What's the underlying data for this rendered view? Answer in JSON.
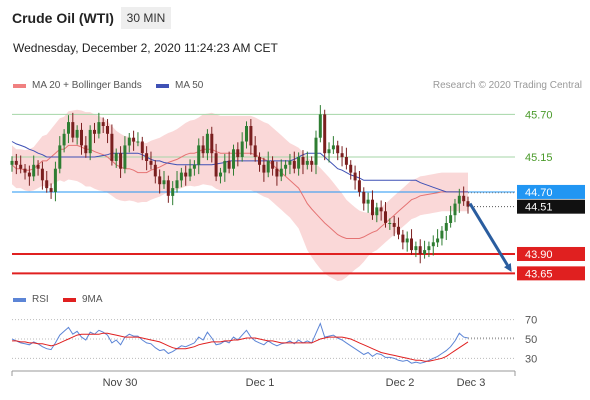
{
  "header": {
    "instrument": "Crude Oil (WTI)",
    "timeframe": "30 MIN",
    "datetime": "Wednesday, December 2, 2020 11:24:23 AM CET",
    "credit": "Research © 2020 Trading Central"
  },
  "colors": {
    "candle_up": "#2e7d32",
    "candle_down": "#7a1f1f",
    "bollinger_band": "#f9d4d4",
    "ma20": "#e57373",
    "ma50": "#3f51b5",
    "pivot": "#2196f3",
    "resistance": "#a5d6a7",
    "support": "#e02020",
    "rsi": "#5c85d6",
    "rsi_ma": "#e02020",
    "forecast_arrow": "#2a5d9f"
  },
  "chart_data": [
    {
      "type": "candlestick",
      "x_ticks": [
        "Nov 30",
        "Dec 1",
        "Dec 2",
        "Dec 3"
      ],
      "legend": [
        {
          "name": "MA 20 + Bollinger Bands",
          "color": "#f08080"
        },
        {
          "name": "MA 50",
          "color": "#3f51b5"
        }
      ],
      "ylim": [
        43.5,
        45.95
      ],
      "levels": [
        {
          "value": 45.7,
          "label": "45.70",
          "kind": "resistance"
        },
        {
          "value": 45.15,
          "label": "45.15",
          "kind": "resistance"
        },
        {
          "value": 44.7,
          "label": "44.70",
          "kind": "pivot"
        },
        {
          "value": 43.9,
          "label": "43.90",
          "kind": "support"
        },
        {
          "value": 43.65,
          "label": "43.65",
          "kind": "support"
        }
      ],
      "last_price": {
        "value": 44.51,
        "label": "44.51"
      },
      "forecast": {
        "from": 44.55,
        "to": 43.65
      },
      "close": [
        45.1,
        45.05,
        45.0,
        44.95,
        44.9,
        45.05,
        45.0,
        44.85,
        44.75,
        44.7,
        45.0,
        45.3,
        45.45,
        45.6,
        45.4,
        45.5,
        45.3,
        45.2,
        45.5,
        45.45,
        45.6,
        45.55,
        45.45,
        45.1,
        45.2,
        45.0,
        45.3,
        45.4,
        45.35,
        45.35,
        45.2,
        45.1,
        45.05,
        44.9,
        44.8,
        44.85,
        44.65,
        44.75,
        44.85,
        44.95,
        44.9,
        45.0,
        45.05,
        45.3,
        45.2,
        45.45,
        45.2,
        44.9,
        44.95,
        45.1,
        45.0,
        45.25,
        45.15,
        45.35,
        45.55,
        45.3,
        45.15,
        45.05,
        44.95,
        45.1,
        45.0,
        44.9,
        45.0,
        45.05,
        45.1,
        45.0,
        45.15,
        45.05,
        45.1,
        45.05,
        45.4,
        45.7,
        45.2,
        45.25,
        45.3,
        45.2,
        45.15,
        45.05,
        44.95,
        44.85,
        44.7,
        44.55,
        44.6,
        44.4,
        44.5,
        44.45,
        44.3,
        44.3,
        44.25,
        44.15,
        44.05,
        44.1,
        43.95,
        44.0,
        43.9,
        43.95,
        44.0,
        44.05,
        44.1,
        44.2,
        44.3,
        44.4,
        44.55,
        44.65,
        44.58,
        44.51
      ],
      "ma20": [
        45.05,
        45.0,
        45.0,
        44.98,
        44.98,
        45.0,
        45.05,
        45.1,
        45.1,
        45.15,
        45.2,
        45.25,
        45.25,
        45.3,
        45.3,
        45.3,
        45.28,
        45.25,
        45.25,
        45.22,
        45.2,
        45.18,
        45.15,
        45.1,
        45.05,
        45.02,
        45.0,
        45.0,
        44.98,
        44.95,
        44.95,
        44.95,
        44.98,
        45.0,
        45.02,
        45.05,
        45.08,
        45.1,
        45.12,
        45.15,
        45.18,
        45.2,
        45.2,
        45.22,
        45.25,
        45.25,
        45.25,
        45.22,
        45.2,
        45.2,
        45.2,
        45.2,
        45.2,
        45.2,
        45.2,
        45.2,
        45.18,
        45.15,
        45.12,
        45.1,
        45.05,
        45.0,
        44.95,
        44.9,
        44.85,
        44.8,
        44.75,
        44.65,
        44.55,
        44.48,
        44.42,
        44.36,
        44.3,
        44.25,
        44.2,
        44.15,
        44.12,
        44.1,
        44.1,
        44.1,
        44.1,
        44.12,
        44.15,
        44.18,
        44.2,
        44.25,
        44.3,
        44.35,
        44.4,
        44.45,
        44.5,
        44.55,
        44.6,
        44.62,
        44.65,
        44.66,
        44.67,
        44.68,
        44.69,
        44.7,
        44.7,
        44.7,
        44.7,
        44.7,
        44.7,
        44.7
      ],
      "ma50": [
        45.35,
        45.32,
        45.3,
        45.28,
        45.25,
        45.23,
        45.2,
        45.18,
        45.15,
        45.15,
        45.15,
        45.15,
        45.15,
        45.15,
        45.15,
        45.15,
        45.15,
        45.15,
        45.15,
        45.15,
        45.16,
        45.17,
        45.18,
        45.2,
        45.2,
        45.2,
        45.2,
        45.2,
        45.2,
        45.2,
        45.18,
        45.15,
        45.12,
        45.1,
        45.1,
        45.08,
        45.07,
        45.06,
        45.05,
        45.05,
        45.05,
        45.05,
        45.05,
        45.05,
        45.05,
        45.05,
        45.05,
        45.06,
        45.07,
        45.08,
        45.1,
        45.1,
        45.1,
        45.1,
        45.1,
        45.1,
        45.1,
        45.1,
        45.1,
        45.1,
        45.1,
        45.1,
        45.1,
        45.1,
        45.1,
        45.12,
        45.15,
        45.18,
        45.2,
        45.2,
        45.2,
        45.2,
        45.15,
        45.1,
        45.05,
        45.0,
        44.98,
        44.95,
        44.92,
        44.9,
        44.88,
        44.85,
        44.85,
        44.85,
        44.85,
        44.85,
        44.85,
        44.85,
        44.85,
        44.85,
        44.85,
        44.85,
        44.85,
        44.85,
        44.82,
        44.8,
        44.78,
        44.76,
        44.74,
        44.72,
        44.7,
        44.7,
        44.7,
        44.7,
        44.7,
        44.7
      ],
      "bb_width": [
        0.25,
        0.25,
        0.25,
        0.26,
        0.27,
        0.28,
        0.3,
        0.32,
        0.34,
        0.36,
        0.38,
        0.4,
        0.42,
        0.44,
        0.45,
        0.46,
        0.47,
        0.48,
        0.48,
        0.48,
        0.48,
        0.47,
        0.46,
        0.45,
        0.44,
        0.43,
        0.42,
        0.41,
        0.4,
        0.39,
        0.38,
        0.38,
        0.38,
        0.38,
        0.38,
        0.38,
        0.38,
        0.38,
        0.39,
        0.4,
        0.41,
        0.42,
        0.43,
        0.44,
        0.45,
        0.46,
        0.47,
        0.48,
        0.48,
        0.48,
        0.48,
        0.48,
        0.48,
        0.48,
        0.48,
        0.48,
        0.48,
        0.48,
        0.48,
        0.48,
        0.48,
        0.48,
        0.48,
        0.48,
        0.48,
        0.5,
        0.52,
        0.56,
        0.6,
        0.62,
        0.64,
        0.65,
        0.65,
        0.64,
        0.62,
        0.6,
        0.56,
        0.5,
        0.45,
        0.4,
        0.36,
        0.32,
        0.28,
        0.26,
        0.25,
        0.25,
        0.25,
        0.25,
        0.25,
        0.25,
        0.25,
        0.25,
        0.25,
        0.25,
        0.25,
        0.25,
        0.25,
        0.25,
        0.25,
        0.25,
        0.25,
        0.25,
        0.25,
        0.25,
        0.25,
        0.25
      ]
    },
    {
      "type": "line",
      "legend": [
        {
          "name": "RSI",
          "color": "#5c85d6"
        },
        {
          "name": "9MA",
          "color": "#e02020"
        }
      ],
      "ylim": [
        20,
        80
      ],
      "y_ticks": [
        70,
        50,
        30
      ],
      "y_tick_labels": [
        "70",
        "50",
        "30"
      ],
      "rsi": [
        50,
        48,
        46,
        45,
        44,
        47,
        45,
        42,
        40,
        39,
        46,
        54,
        58,
        62,
        55,
        58,
        52,
        49,
        57,
        55,
        59,
        57,
        54,
        46,
        49,
        44,
        52,
        55,
        53,
        53,
        49,
        46,
        45,
        41,
        38,
        39,
        35,
        37,
        40,
        43,
        42,
        44,
        46,
        52,
        49,
        57,
        51,
        44,
        45,
        48,
        46,
        52,
        49,
        54,
        59,
        52,
        48,
        46,
        44,
        48,
        45,
        43,
        45,
        46,
        48,
        45,
        49,
        46,
        48,
        46,
        56,
        66,
        52,
        53,
        54,
        51,
        49,
        46,
        43,
        40,
        37,
        34,
        36,
        32,
        35,
        34,
        31,
        31,
        30,
        28,
        27,
        28,
        25,
        26,
        25,
        26,
        28,
        30,
        32,
        35,
        38,
        42,
        48,
        56,
        52,
        51
      ],
      "rsi_ma": [
        48,
        48,
        47,
        47,
        46,
        46,
        45,
        45,
        44,
        43,
        44,
        46,
        48,
        50,
        52,
        54,
        55,
        55,
        55,
        55,
        55,
        56,
        56,
        55,
        54,
        53,
        52,
        52,
        52,
        52,
        51,
        50,
        49,
        48,
        47,
        45,
        43,
        41,
        40,
        40,
        40,
        41,
        42,
        44,
        45,
        46,
        47,
        47,
        47,
        48,
        48,
        49,
        49,
        50,
        51,
        51,
        51,
        50,
        49,
        48,
        48,
        47,
        46,
        46,
        46,
        46,
        46,
        46,
        46,
        46,
        48,
        50,
        51,
        52,
        52,
        52,
        52,
        51,
        50,
        48,
        46,
        44,
        42,
        40,
        38,
        36,
        35,
        34,
        33,
        32,
        31,
        30,
        29,
        28,
        28,
        27,
        27,
        28,
        29,
        30,
        32,
        35,
        38,
        41,
        44,
        47
      ]
    }
  ]
}
